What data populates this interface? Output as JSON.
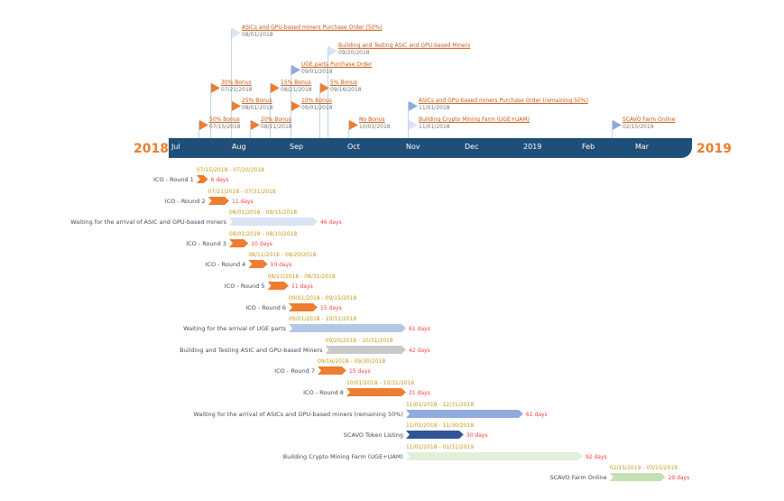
{
  "years": {
    "start": "2018",
    "end": "2019"
  },
  "months": [
    "Jul",
    "Aug",
    "Sep",
    "Oct",
    "Nov",
    "Dec",
    "2019",
    "Feb",
    "Mar"
  ],
  "colors": {
    "axis": "#1f4e79",
    "accent": "#ed7d31",
    "date_text": "#c49a1a",
    "days_text": "#ff3b3b"
  },
  "milestones": [
    {
      "title": "ASICs and GPU-based miners Purchase Order (50%)",
      "date": "08/01/2018",
      "color": "#dae3f3"
    },
    {
      "title": "Building and Testing ASIC and GPU-based Miners",
      "date": "09/20/2018",
      "color": "#dae3f3"
    },
    {
      "title": "UGE parts Purchase Order",
      "date": "09/01/2018",
      "color": "#8faadc"
    },
    {
      "title": "30% Bonus",
      "date": "07/21/2018",
      "color": "#ed7d31"
    },
    {
      "title": "15% Bonus",
      "date": "08/21/2018",
      "color": "#ed7d31"
    },
    {
      "title": "5% Bonus",
      "date": "09/16/2018",
      "color": "#ed7d31"
    },
    {
      "title": "25% Bonus",
      "date": "08/01/2018",
      "color": "#ed7d31"
    },
    {
      "title": "10% Bonus",
      "date": "09/01/2018",
      "color": "#ed7d31"
    },
    {
      "title": "ASICs and GPU-based miners Purchase Order (remaining 50%)",
      "date": "11/01/2018",
      "color": "#8faadc"
    },
    {
      "title": "50% Bonus",
      "date": "07/15/2018",
      "color": "#ed7d31"
    },
    {
      "title": "20% Bonus",
      "date": "08/11/2018",
      "color": "#ed7d31"
    },
    {
      "title": "No Bonus",
      "date": "10/01/2018",
      "color": "#ed7d31"
    },
    {
      "title": "Building Crypto Mining Farm (UGE+UAM)",
      "date": "11/01/2018",
      "color": "#dae3f3"
    },
    {
      "title": "SCAVO Farm Online",
      "date": "02/15/2019",
      "color": "#8faadc"
    }
  ],
  "tasks": [
    {
      "label": "ICO - Round 1",
      "start": "07/15/2018",
      "end": "07/20/2018",
      "days": "6 days",
      "color": "#ed7d31"
    },
    {
      "label": "ICO - Round 2",
      "start": "07/21/2018",
      "end": "07/31/2018",
      "days": "11 days",
      "color": "#ed7d31"
    },
    {
      "label": "Waiting for the arrival of ASIC and GPU-based miners",
      "start": "08/01/2018",
      "end": "09/15/2018",
      "days": "46 days",
      "color": "#dae3f3"
    },
    {
      "label": "ICO - Round 3",
      "start": "08/01/2018",
      "end": "08/10/2018",
      "days": "10 days",
      "color": "#ed7d31"
    },
    {
      "label": "ICO - Round 4",
      "start": "08/11/2018",
      "end": "08/20/2018",
      "days": "10 days",
      "color": "#ed7d31"
    },
    {
      "label": "ICO - Round 5",
      "start": "08/21/2018",
      "end": "08/31/2018",
      "days": "11 days",
      "color": "#ed7d31"
    },
    {
      "label": "ICO - Round 6",
      "start": "09/01/2018",
      "end": "09/15/2018",
      "days": "15 days",
      "color": "#ed7d31"
    },
    {
      "label": "Waiting for the arrival of UGE parts",
      "start": "09/01/2018",
      "end": "10/31/2018",
      "days": "61 days",
      "color": "#b4c7e7"
    },
    {
      "label": "Building and Testing ASIC and GPU-based Miners",
      "start": "09/20/2018",
      "end": "10/31/2018",
      "days": "42 days",
      "color": "#c9c9c9"
    },
    {
      "label": "ICO - Round 7",
      "start": "09/16/2018",
      "end": "09/30/2018",
      "days": "15 days",
      "color": "#ed7d31"
    },
    {
      "label": "ICO - Round 8",
      "start": "10/01/2018",
      "end": "10/31/2018",
      "days": "31 days",
      "color": "#ed7d31"
    },
    {
      "label": "Waiting for the arrival of ASICs and GPU-based miners (remaining 50%)",
      "start": "11/01/2018",
      "end": "12/31/2018",
      "days": "61 days",
      "color": "#8faadc"
    },
    {
      "label": "SCAVO Token Listing",
      "start": "11/01/2018",
      "end": "11/30/2018",
      "days": "30 days",
      "color": "#2f5597"
    },
    {
      "label": "Building Crypto Mining Farm (UGE+UAM)",
      "start": "11/01/2018",
      "end": "01/31/2019",
      "days": "92 days",
      "color": "#e2efda"
    },
    {
      "label": "SCAVO Farm Online",
      "start": "02/15/2019",
      "end": "03/15/2019",
      "days": "29 days",
      "color": "#c5e0b4"
    }
  ]
}
